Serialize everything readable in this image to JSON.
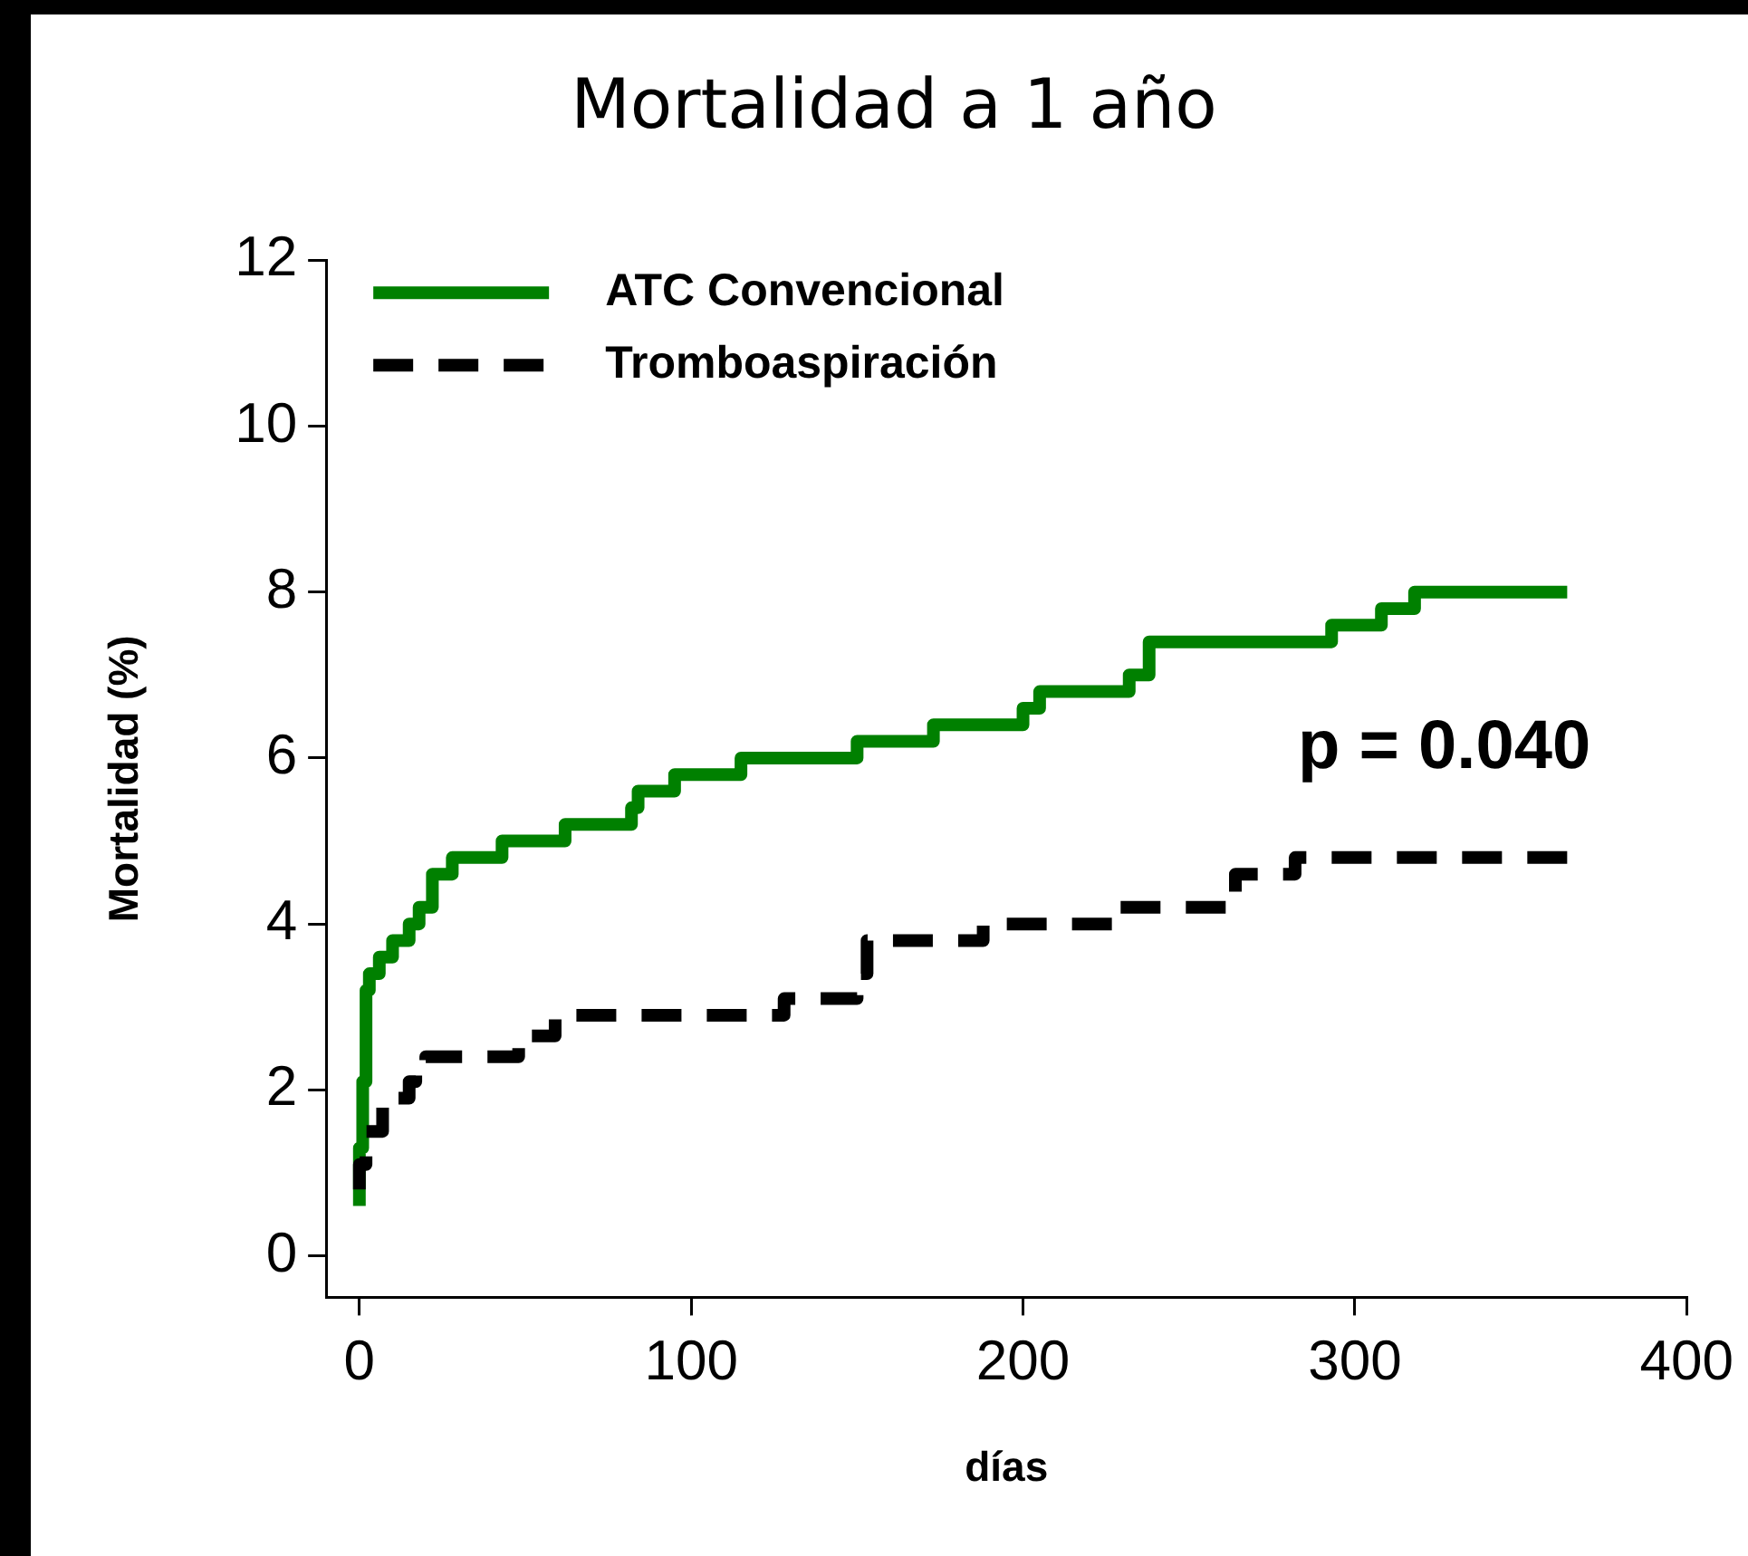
{
  "chart_data": {
    "type": "step",
    "title": "Mortalidad a 1 año",
    "xlabel": "días",
    "ylabel": "Mortalidad (%)",
    "xlim": [
      -10,
      400
    ],
    "xticks": [
      0,
      100,
      200,
      300,
      400
    ],
    "ylim": [
      -0.5,
      12
    ],
    "yticks": [
      0,
      2,
      4,
      6,
      8,
      10,
      12
    ],
    "grid": false,
    "legend": "top left",
    "annotations": [
      "p = 0.040"
    ],
    "series": [
      {
        "name": "ATC Convencional",
        "color": "#008000",
        "line_style": "solid",
        "x": [
          0,
          1,
          2,
          3,
          6,
          10,
          15,
          18,
          22,
          28,
          43,
          62,
          82,
          84,
          95,
          115,
          150,
          173,
          200,
          205,
          232,
          238,
          293,
          308,
          318,
          323,
          364
        ],
        "values": [
          0.6,
          1.3,
          2.1,
          3.2,
          3.4,
          3.6,
          3.8,
          4.0,
          4.2,
          4.6,
          4.8,
          5.0,
          5.2,
          5.4,
          5.6,
          5.8,
          6.0,
          6.2,
          6.4,
          6.6,
          6.8,
          7.0,
          7.4,
          7.6,
          7.8,
          8.0,
          8.0
        ]
      },
      {
        "name": "Tromboaspiración",
        "color": "#000000",
        "line_style": "dashed",
        "x": [
          0,
          2,
          7,
          15,
          17,
          20,
          48,
          59,
          128,
          150,
          153,
          188,
          229,
          264,
          282,
          291,
          364
        ],
        "values": [
          0.8,
          1.1,
          1.5,
          1.9,
          2.1,
          2.3,
          2.4,
          2.65,
          2.9,
          3.1,
          3.4,
          3.8,
          4.0,
          4.2,
          4.6,
          4.8,
          4.8
        ]
      }
    ]
  }
}
